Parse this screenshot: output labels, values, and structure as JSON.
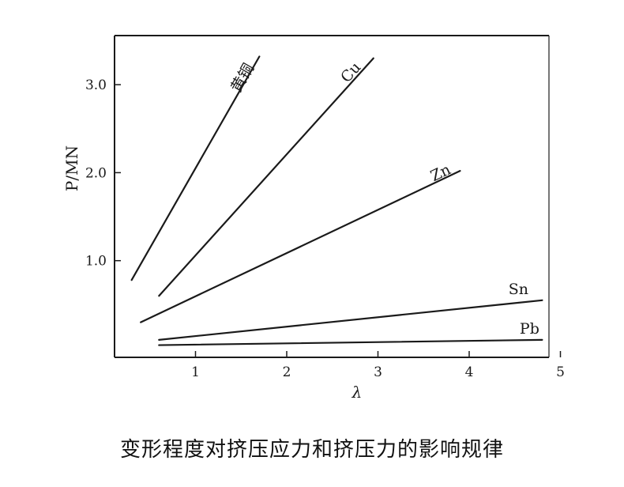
{
  "caption": "变形程度对挤压应力和挤压力的影响规律",
  "chart_data": {
    "type": "line",
    "xlabel": "λ",
    "ylabel": "P/MN",
    "x_ticks": [
      "1",
      "2",
      "3",
      "4",
      "5"
    ],
    "y_ticks": [
      "1.0",
      "2.0",
      "3.0"
    ],
    "xlim": [
      0.0,
      5.0
    ],
    "ylim": [
      -0.1,
      3.55
    ],
    "grid": false,
    "legend": "none",
    "line_color": "#1a1a1a",
    "series": [
      {
        "name": "黄铜",
        "points": [
          [
            0.3,
            0.78
          ],
          [
            1.7,
            3.32
          ]
        ]
      },
      {
        "name": "Cu",
        "points": [
          [
            0.6,
            0.6
          ],
          [
            2.95,
            3.3
          ]
        ]
      },
      {
        "name": "Zn",
        "points": [
          [
            0.4,
            0.3
          ],
          [
            3.9,
            2.02
          ]
        ]
      },
      {
        "name": "Sn",
        "points": [
          [
            0.6,
            0.1
          ],
          [
            4.8,
            0.55
          ]
        ]
      },
      {
        "name": "Pb",
        "points": [
          [
            0.6,
            0.04
          ],
          [
            4.8,
            0.1
          ]
        ]
      }
    ]
  }
}
